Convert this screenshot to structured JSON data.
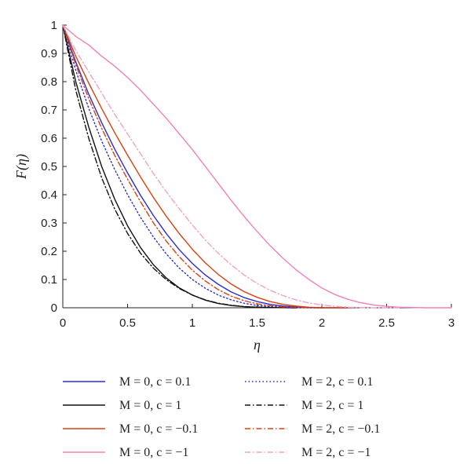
{
  "chart_data": {
    "type": "line",
    "title": "",
    "xlabel": "η",
    "ylabel": "F(η)",
    "xlim": [
      0,
      3
    ],
    "ylim": [
      0,
      1
    ],
    "x_ticks": [
      "0",
      "0.5",
      "1",
      "1.5",
      "2",
      "2.5",
      "3"
    ],
    "y_ticks": [
      "0",
      "0.1",
      "0.2",
      "0.3",
      "0.4",
      "0.5",
      "0.6",
      "0.7",
      "0.8",
      "0.9",
      "1"
    ],
    "grid": false,
    "legend_position": "bottom",
    "series": [
      {
        "name": "M = 0, c = 0.1",
        "color": "#2b2bd6",
        "dash": "solid",
        "x": [
          0,
          0.1,
          0.2,
          0.3,
          0.4,
          0.5,
          0.6,
          0.7,
          0.8,
          0.9,
          1.0,
          1.1,
          1.2,
          1.3,
          1.4,
          1.5,
          1.6,
          1.7,
          1.8,
          1.9,
          2.0,
          2.2
        ],
        "y": [
          1.0,
          0.87,
          0.756,
          0.655,
          0.562,
          0.477,
          0.398,
          0.326,
          0.262,
          0.205,
          0.157,
          0.116,
          0.083,
          0.056,
          0.036,
          0.022,
          0.012,
          0.006,
          0.003,
          0.001,
          0.0,
          0.0
        ]
      },
      {
        "name": "M = 0, c = 1",
        "color": "#111111",
        "dash": "solid",
        "x": [
          0,
          0.1,
          0.2,
          0.3,
          0.4,
          0.5,
          0.6,
          0.7,
          0.8,
          0.9,
          1.0,
          1.1,
          1.2,
          1.3,
          1.4,
          1.5,
          1.6,
          1.8
        ],
        "y": [
          1.0,
          0.8,
          0.64,
          0.5,
          0.385,
          0.29,
          0.213,
          0.152,
          0.105,
          0.07,
          0.045,
          0.027,
          0.015,
          0.008,
          0.004,
          0.002,
          0.001,
          0.0
        ]
      },
      {
        "name": "M = 0, c = −0.1",
        "color": "#d94010",
        "dash": "solid",
        "x": [
          0,
          0.1,
          0.2,
          0.3,
          0.4,
          0.5,
          0.6,
          0.7,
          0.8,
          0.9,
          1.0,
          1.1,
          1.2,
          1.3,
          1.4,
          1.5,
          1.6,
          1.7,
          1.8,
          1.9,
          2.0,
          2.2
        ],
        "y": [
          1.0,
          0.89,
          0.795,
          0.705,
          0.62,
          0.54,
          0.463,
          0.39,
          0.323,
          0.262,
          0.207,
          0.159,
          0.118,
          0.084,
          0.057,
          0.037,
          0.022,
          0.012,
          0.006,
          0.002,
          0.0,
          0.0
        ]
      },
      {
        "name": "M = 0, c = −1",
        "color": "#f080b8",
        "dash": "solid",
        "x": [
          0,
          0.1,
          0.2,
          0.3,
          0.4,
          0.5,
          0.6,
          0.7,
          0.8,
          0.9,
          1.0,
          1.1,
          1.2,
          1.3,
          1.4,
          1.5,
          1.6,
          1.7,
          1.8,
          1.9,
          2.0,
          2.1,
          2.2,
          2.3,
          2.4,
          2.5,
          2.6,
          2.8,
          3.0
        ],
        "y": [
          1.0,
          0.96,
          0.93,
          0.89,
          0.855,
          0.815,
          0.77,
          0.72,
          0.67,
          0.615,
          0.56,
          0.5,
          0.44,
          0.38,
          0.323,
          0.27,
          0.22,
          0.175,
          0.135,
          0.1,
          0.07,
          0.047,
          0.03,
          0.018,
          0.01,
          0.005,
          0.002,
          0.0,
          0.0
        ]
      },
      {
        "name": "M = 2, c = 0.1",
        "color": "#2b2bd6",
        "dash": "dotted",
        "x": [
          0,
          0.1,
          0.2,
          0.3,
          0.4,
          0.5,
          0.6,
          0.7,
          0.8,
          0.9,
          1.0,
          1.1,
          1.2,
          1.3,
          1.4,
          1.5,
          1.6,
          1.7,
          1.8,
          2.0
        ],
        "y": [
          1.0,
          0.84,
          0.706,
          0.59,
          0.49,
          0.4,
          0.32,
          0.25,
          0.19,
          0.14,
          0.1,
          0.069,
          0.045,
          0.028,
          0.016,
          0.008,
          0.004,
          0.002,
          0.0,
          0.0
        ]
      },
      {
        "name": "M = 2, c = 1",
        "color": "#111111",
        "dash": "dashdot",
        "x": [
          0,
          0.1,
          0.2,
          0.3,
          0.4,
          0.5,
          0.6,
          0.7,
          0.8,
          0.9,
          1.0,
          1.1,
          1.2,
          1.3,
          1.4,
          1.5,
          1.6,
          1.8
        ],
        "y": [
          1.0,
          0.77,
          0.6,
          0.46,
          0.35,
          0.263,
          0.193,
          0.14,
          0.099,
          0.068,
          0.045,
          0.028,
          0.016,
          0.009,
          0.004,
          0.002,
          0.001,
          0.0
        ]
      },
      {
        "name": "M = 2, c = −0.1",
        "color": "#d94010",
        "dash": "dashdot",
        "x": [
          0,
          0.1,
          0.2,
          0.3,
          0.4,
          0.5,
          0.6,
          0.7,
          0.8,
          0.9,
          1.0,
          1.1,
          1.2,
          1.3,
          1.4,
          1.5,
          1.6,
          1.7,
          1.8,
          1.9,
          2.0
        ],
        "y": [
          1.0,
          0.86,
          0.74,
          0.635,
          0.54,
          0.455,
          0.375,
          0.3,
          0.235,
          0.18,
          0.133,
          0.095,
          0.064,
          0.041,
          0.025,
          0.014,
          0.007,
          0.003,
          0.001,
          0.0,
          0.0
        ]
      },
      {
        "name": "M = 2, c = −1",
        "color": "#f4a0c8",
        "dash": "dashdot",
        "x": [
          0,
          0.1,
          0.2,
          0.3,
          0.4,
          0.5,
          0.6,
          0.7,
          0.8,
          0.9,
          1.0,
          1.1,
          1.2,
          1.3,
          1.4,
          1.5,
          1.6,
          1.7,
          1.8,
          1.9,
          2.0,
          2.1,
          2.2,
          2.3,
          2.4,
          2.6
        ],
        "y": [
          1.0,
          0.91,
          0.835,
          0.76,
          0.685,
          0.615,
          0.545,
          0.475,
          0.41,
          0.35,
          0.293,
          0.24,
          0.193,
          0.152,
          0.116,
          0.086,
          0.062,
          0.043,
          0.028,
          0.017,
          0.01,
          0.005,
          0.002,
          0.001,
          0.0,
          0.0
        ]
      }
    ]
  }
}
